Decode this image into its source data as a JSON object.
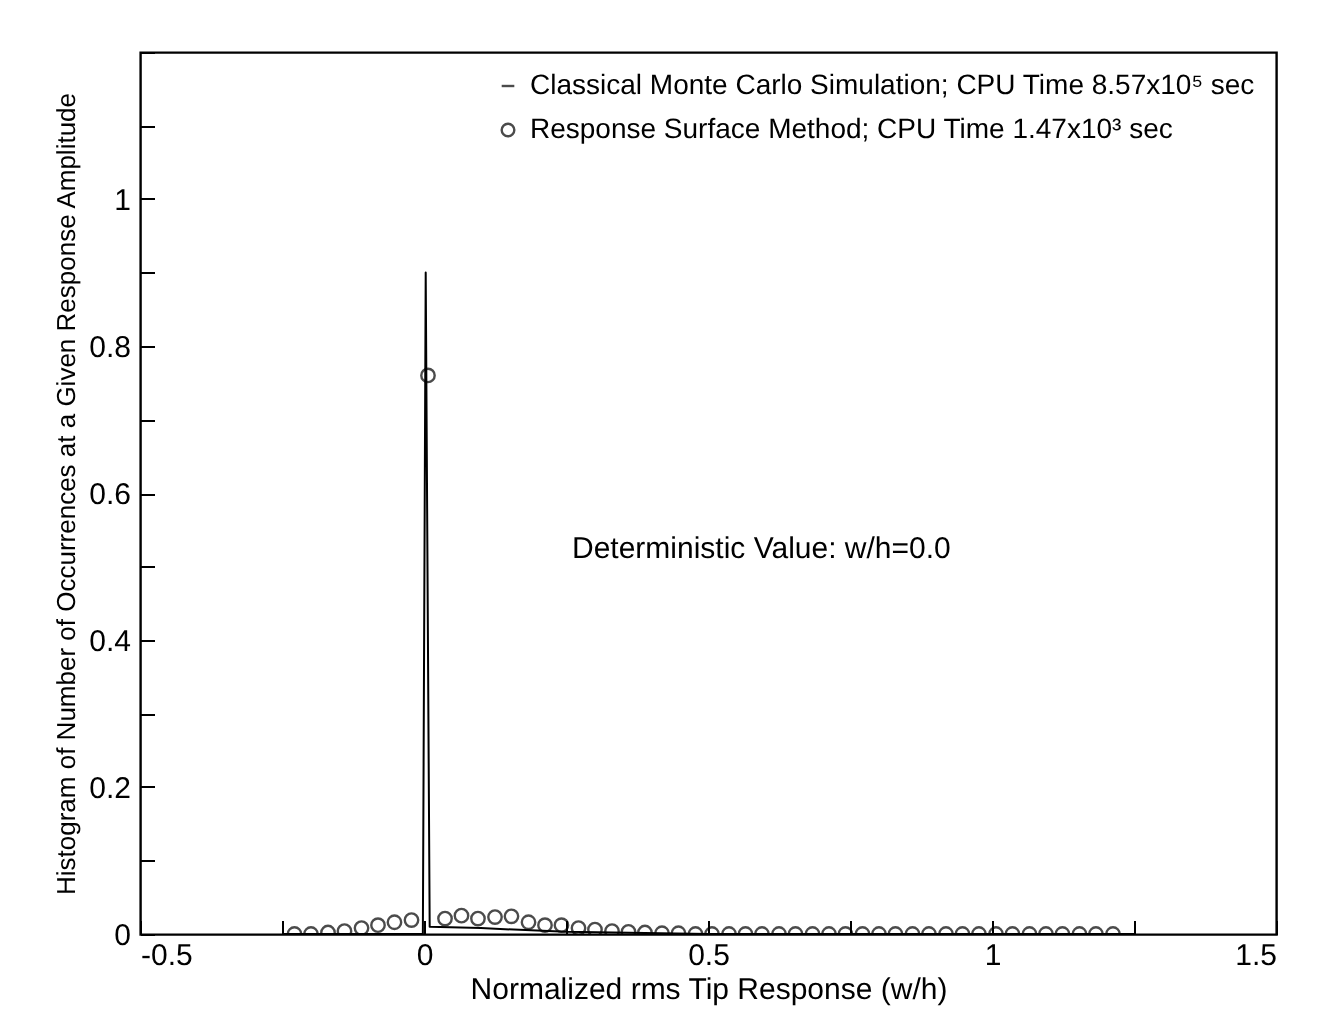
{
  "chart_data": {
    "type": "line",
    "xlabel": "Normalized rms Tip Response (w/h)",
    "ylabel": "Histogram of Number of Occurrences at a Given Response Amplitude",
    "annotations": [
      "Deterministic Value: w/h=0.0"
    ],
    "xlim": [
      -0.5,
      1.5
    ],
    "xticks": [
      -0.5,
      {
        "value": -0.25,
        "label": null
      },
      0,
      {
        "value": 0.25,
        "label": null
      },
      0.5,
      {
        "value": 0.75,
        "label": null
      },
      1,
      {
        "value": 1.25,
        "label": null
      },
      1.5
    ],
    "ylim": [
      0,
      1.2
    ],
    "yticks": [
      0,
      {
        "value": 0.1,
        "label": null
      },
      0.2,
      {
        "value": 0.3,
        "label": null
      },
      0.4,
      {
        "value": 0.5,
        "label": null
      },
      0.6,
      {
        "value": 0.7,
        "label": null
      },
      0.8,
      {
        "value": 0.9,
        "label": null
      },
      1,
      {
        "value": 1.1,
        "label": null
      },
      {
        "value": 1.2,
        "label": null
      }
    ],
    "legend": "top right",
    "grid": false,
    "series": [
      {
        "name": "Classical Monte Carlo Simulation; CPU Time 8.57x10⁵ sec",
        "type": "line",
        "marker": "none",
        "color": "#000000",
        "x": [
          -0.25,
          -0.002,
          0.003,
          0.01,
          0.1,
          0.25,
          0.5,
          1.25
        ],
        "values": [
          0,
          0,
          0.9,
          0.01,
          0.008,
          0.003,
          0,
          0
        ]
      },
      {
        "name": "Response Surface Method; CPU Time 1.47x10³ sec",
        "type": "scatter",
        "marker": "circle",
        "color": "#000000",
        "x": [
          -0.228,
          -0.199,
          -0.169,
          -0.14,
          -0.11,
          -0.081,
          -0.052,
          -0.022,
          0.007,
          0.037,
          0.066,
          0.095,
          0.125,
          0.154,
          0.184,
          0.213,
          0.242,
          0.272,
          0.301,
          0.331,
          0.36,
          0.389,
          0.419,
          0.448,
          0.478,
          0.507,
          0.537,
          0.566,
          0.595,
          0.625,
          0.654,
          0.684,
          0.713,
          0.742,
          0.772,
          0.801,
          0.83,
          0.86,
          0.889,
          0.919,
          0.948,
          0.977,
          1.007,
          1.036,
          1.066,
          1.095,
          1.124,
          1.154,
          1.183,
          1.213
        ],
        "values": [
          0,
          0,
          0.002,
          0.004,
          0.008,
          0.012,
          0.016,
          0.019,
          0.76,
          0.021,
          0.025,
          0.021,
          0.023,
          0.024,
          0.016,
          0.012,
          0.012,
          0.008,
          0.006,
          0.004,
          0.003,
          0.002,
          0.001,
          0.001,
          0,
          0,
          0,
          0,
          0,
          0,
          0,
          0,
          0,
          0,
          0,
          0,
          0,
          0,
          0,
          0,
          0,
          0,
          0,
          0,
          0,
          0,
          0,
          0,
          0,
          0
        ]
      }
    ]
  }
}
